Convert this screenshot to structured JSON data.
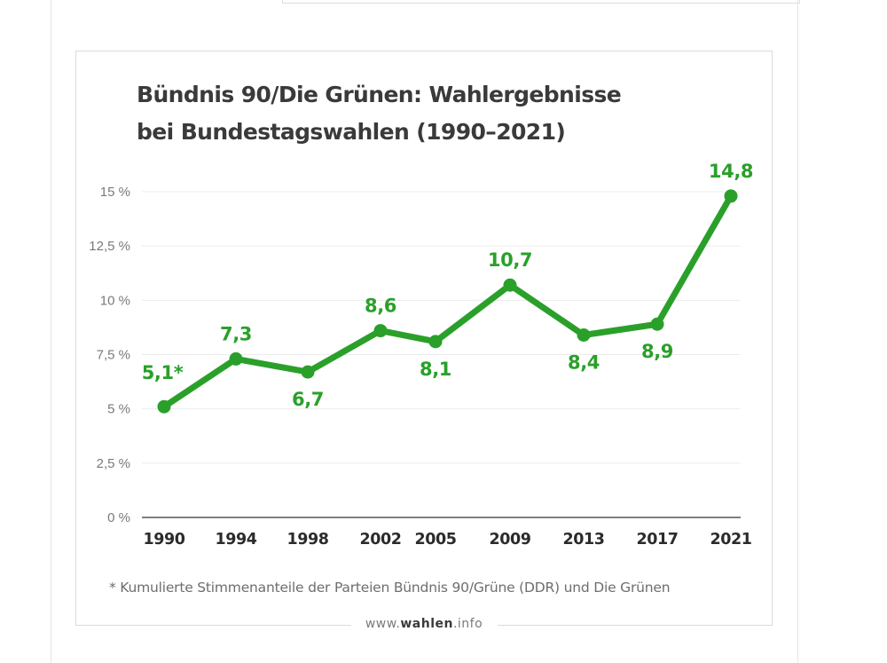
{
  "chart_data": {
    "type": "line",
    "title_lines": [
      "Bündnis 90/Die Grünen: Wahlergebnisse",
      "bei Bundestagswahlen (1990–2021)"
    ],
    "xlabel": "",
    "ylabel": "",
    "x": [
      "1990",
      "1994",
      "1998",
      "2002",
      "2005",
      "2009",
      "2013",
      "2017",
      "2021"
    ],
    "x_numeric": [
      1990,
      1994,
      1998,
      2002,
      2005,
      2009,
      2013,
      2017,
      2021
    ],
    "x_positions": [
      0,
      1,
      2,
      3,
      4,
      5,
      6,
      7,
      8
    ],
    "series": [
      {
        "name": "Bündnis 90/Die Grünen",
        "values": [
          5.1,
          7.3,
          6.7,
          8.6,
          8.1,
          10.7,
          8.4,
          8.9,
          14.8
        ],
        "labels": [
          "5,1*",
          "7,3",
          "6,7",
          "8,6",
          "8,1",
          "10,7",
          "8,4",
          "8,9",
          "14,8"
        ],
        "label_positions": [
          "above",
          "above",
          "below",
          "above",
          "below",
          "above",
          "below",
          "below",
          "above"
        ]
      }
    ],
    "yticks": [
      0,
      2.5,
      5,
      7.5,
      10,
      12.5,
      15
    ],
    "ytick_labels": [
      "0 %",
      "2,5 %",
      "5 %",
      "7,5 %",
      "10 %",
      "12,5 %",
      "15 %"
    ],
    "ylim": [
      0,
      15
    ],
    "grid": true,
    "legend": "none"
  },
  "footnote": "* Kumulierte Stimmenanteile der Parteien Bündnis 90/Grüne (DDR) und Die Grünen",
  "source": {
    "prefix": "www.",
    "brand": "wahlen",
    "suffix": ".info"
  },
  "colors": {
    "line": "#2aa02a",
    "grid": "#ececec",
    "axis": "#333333"
  }
}
